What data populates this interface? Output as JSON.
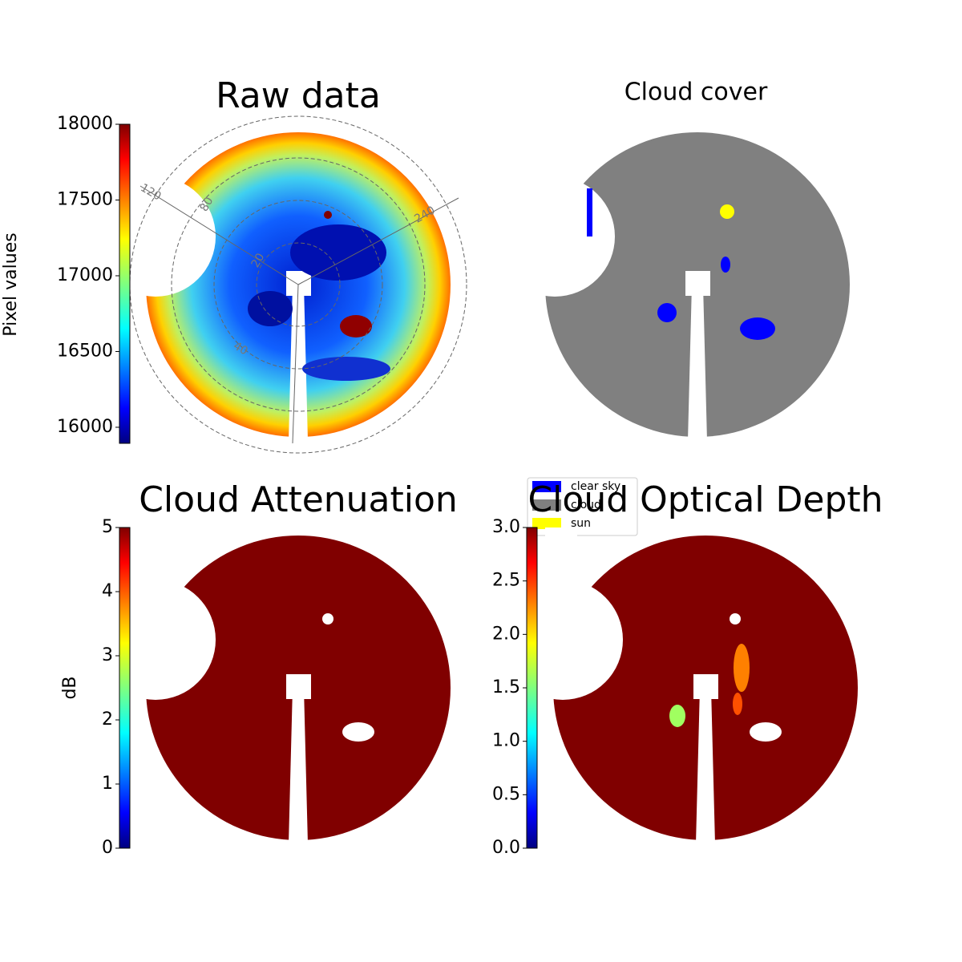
{
  "chart_data": [
    {
      "type": "image",
      "title": "Raw data",
      "colorbar": {
        "label": "Pixel values",
        "lim": [
          15894,
          18000
        ],
        "ticks": [
          16000,
          16500,
          17000,
          17500,
          18000
        ]
      },
      "polar_labels": [
        "120",
        "80",
        "20",
        "40",
        "240"
      ]
    },
    {
      "type": "image",
      "title": "Cloud cover",
      "legend": [
        {
          "name": "clear sky",
          "color": "#0000ff"
        },
        {
          "name": "cloud",
          "color": "#808080"
        },
        {
          "name": "sun",
          "color": "#ffff00"
        }
      ]
    },
    {
      "type": "image",
      "title": "Cloud Attenuation",
      "colorbar": {
        "label": "dB",
        "lim": [
          0,
          5
        ],
        "ticks": [
          0,
          1,
          2,
          3,
          4,
          5
        ]
      }
    },
    {
      "type": "image",
      "title": "Cloud Optical Depth",
      "colorbar": {
        "lim": [
          0,
          3
        ],
        "ticks": [
          {
            "value": 0,
            "label": "0.0"
          },
          {
            "value": 0.5,
            "label": "0.5"
          },
          {
            "value": 1,
            "label": "1.0"
          },
          {
            "value": 1.5,
            "label": "1.5"
          },
          {
            "value": 2,
            "label": "2.0"
          },
          {
            "value": 2.5,
            "label": "2.5"
          },
          {
            "value": 3,
            "label": "3.0"
          }
        ]
      }
    }
  ]
}
